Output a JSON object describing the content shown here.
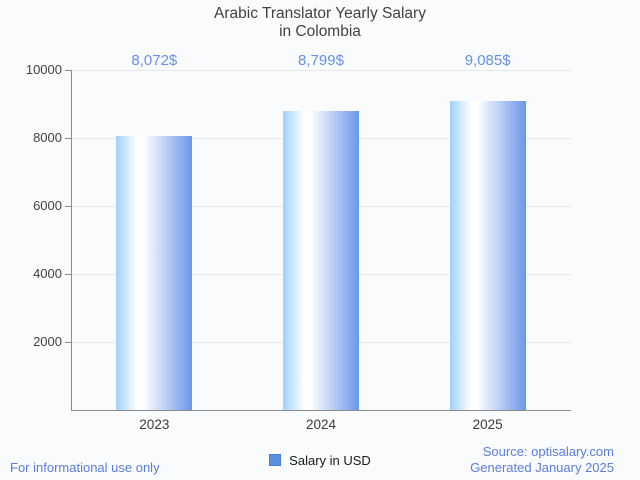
{
  "title": {
    "line1": "Arabic Translator Yearly Salary",
    "line2": "in Colombia"
  },
  "chart_data": {
    "type": "bar",
    "title": "Arabic Translator Yearly Salary in Colombia",
    "categories": [
      "2023",
      "2024",
      "2025"
    ],
    "series": [
      {
        "name": "Salary in USD",
        "values": [
          8072,
          8799,
          9085
        ]
      }
    ],
    "value_labels": [
      "8,072$",
      "8,799$",
      "9,085$"
    ],
    "xlabel": "",
    "ylabel": "",
    "ylim": [
      0,
      10000
    ],
    "yticks": [
      2000,
      4000,
      6000,
      8000,
      10000
    ],
    "grid": true,
    "legend_position": "bottom"
  },
  "legend": {
    "label": "Salary in USD"
  },
  "footer": {
    "disclaimer": "For informational use only",
    "source": "Source: optisalary.com",
    "generated": "Generated January 2025"
  },
  "colors": {
    "background": "#fafbfd",
    "title_text": "#424242",
    "axis_line": "#8a8a8a",
    "gridline": "#e6e7eb",
    "axis_label_text": "#424242",
    "value_label_text": "#6690e8",
    "footer_text": "#5b7edc",
    "legend_swatch_fill": "#5b8de2",
    "legend_swatch_border": "#4a7bce",
    "bar_gradient_left": "#a2d1fa",
    "bar_gradient_mid": "#ffffff",
    "bar_gradient_right": "#6b96ea"
  }
}
